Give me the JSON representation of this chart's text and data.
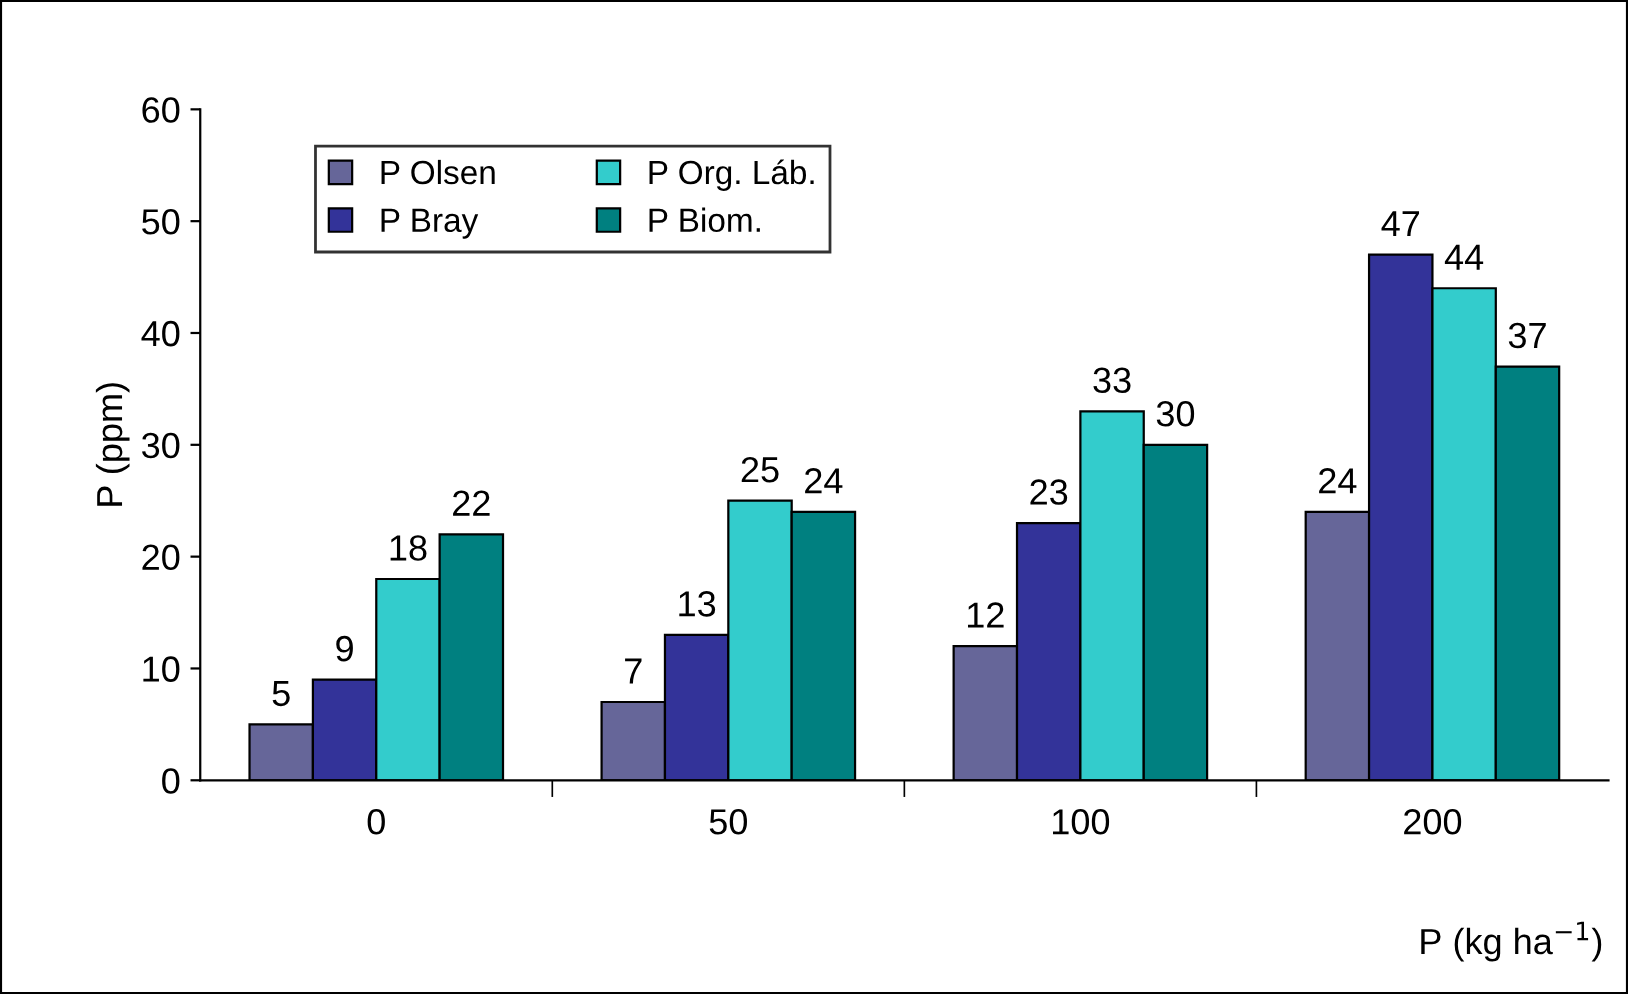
{
  "chart_data": {
    "type": "bar",
    "xlabel": "P (kg ha$^{−1}$)",
    "ylabel": "P (ppm)",
    "categories": [
      "0",
      "50",
      "100",
      "200"
    ],
    "series": [
      {
        "name": "P Olsen",
        "color": "#666699",
        "values": [
          5,
          7,
          12,
          24
        ]
      },
      {
        "name": "P Bray",
        "color": "#333399",
        "values": [
          9,
          13,
          23,
          47
        ]
      },
      {
        "name": "P Org. Láb.",
        "color": "#33cccc",
        "values": [
          18,
          25,
          33,
          44
        ]
      },
      {
        "name": "P Biom.",
        "color": "#008080",
        "values": [
          22,
          24,
          30,
          37
        ]
      }
    ],
    "ylim": [
      0,
      60
    ],
    "yticks": [
      0,
      10,
      20,
      30,
      40,
      50,
      60
    ],
    "grid": false,
    "legend": "top left",
    "data_labels": true
  }
}
